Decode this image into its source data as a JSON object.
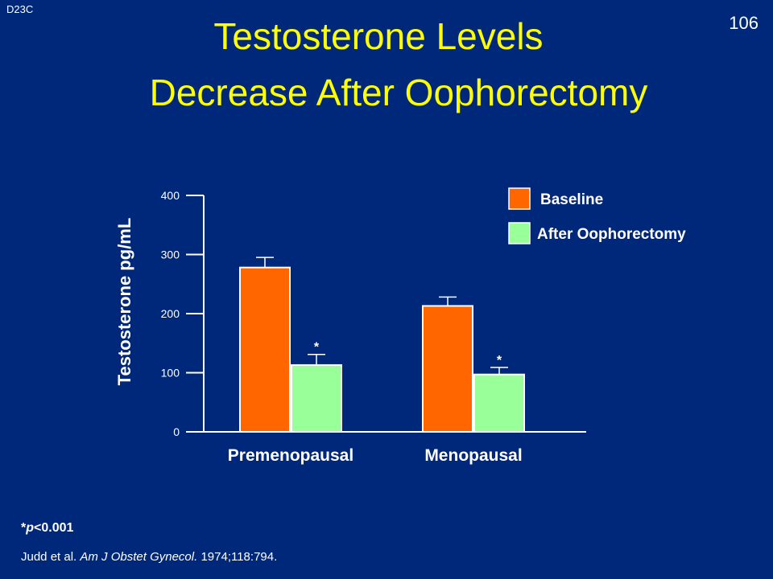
{
  "slide": {
    "code": "D23C",
    "page_number": "106",
    "title_line1": "Testosterone Levels",
    "title_line2": "Decrease After Oophorectomy",
    "footnote": "*p<0.001",
    "reference_authors": "Judd  et al.",
    "reference_journal": "Am J Obstet Gynecol.",
    "reference_details": "1974;118:794."
  },
  "colors": {
    "background": "#00287a",
    "title": "#ffff00",
    "baseline": "#ff6600",
    "after": "#99ff99",
    "bar_outline": "#ffffff"
  },
  "chart_data": {
    "type": "bar",
    "categories": [
      "Premenopausal",
      "Menopausal"
    ],
    "series": [
      {
        "name": "Baseline",
        "values": [
          278,
          213
        ],
        "error": [
          17,
          15
        ],
        "significance": [
          "",
          ""
        ]
      },
      {
        "name": "After Oophorectomy",
        "values": [
          113,
          97
        ],
        "error": [
          18,
          12
        ],
        "significance": [
          "*",
          "*"
        ]
      }
    ],
    "ylabel": "Testosterone pg/mL",
    "ylim": [
      0,
      400
    ],
    "yticks": [
      0,
      100,
      200,
      300,
      400
    ],
    "legend_position": "top-right",
    "grid": false
  }
}
